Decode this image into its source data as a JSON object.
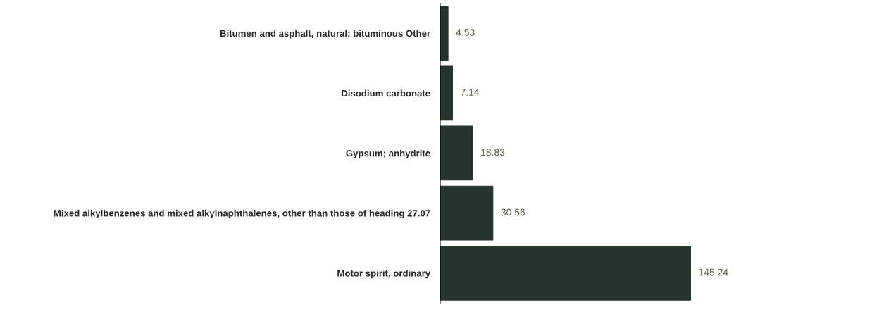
{
  "chart_data": {
    "type": "bar",
    "orientation": "horizontal",
    "categories": [
      "Bitumen and asphalt, natural; bituminous Other",
      "Disodium carbonate",
      "Gypsum; anhydrite",
      "Mixed alkylbenzenes and mixed alkylnaphthalenes, other than those of heading 27.07",
      "Motor spirit, ordinary"
    ],
    "values": [
      4.53,
      7.14,
      18.83,
      30.56,
      145.24
    ],
    "color": "#26352b",
    "data_labels": true,
    "grid": false,
    "legend": false
  }
}
